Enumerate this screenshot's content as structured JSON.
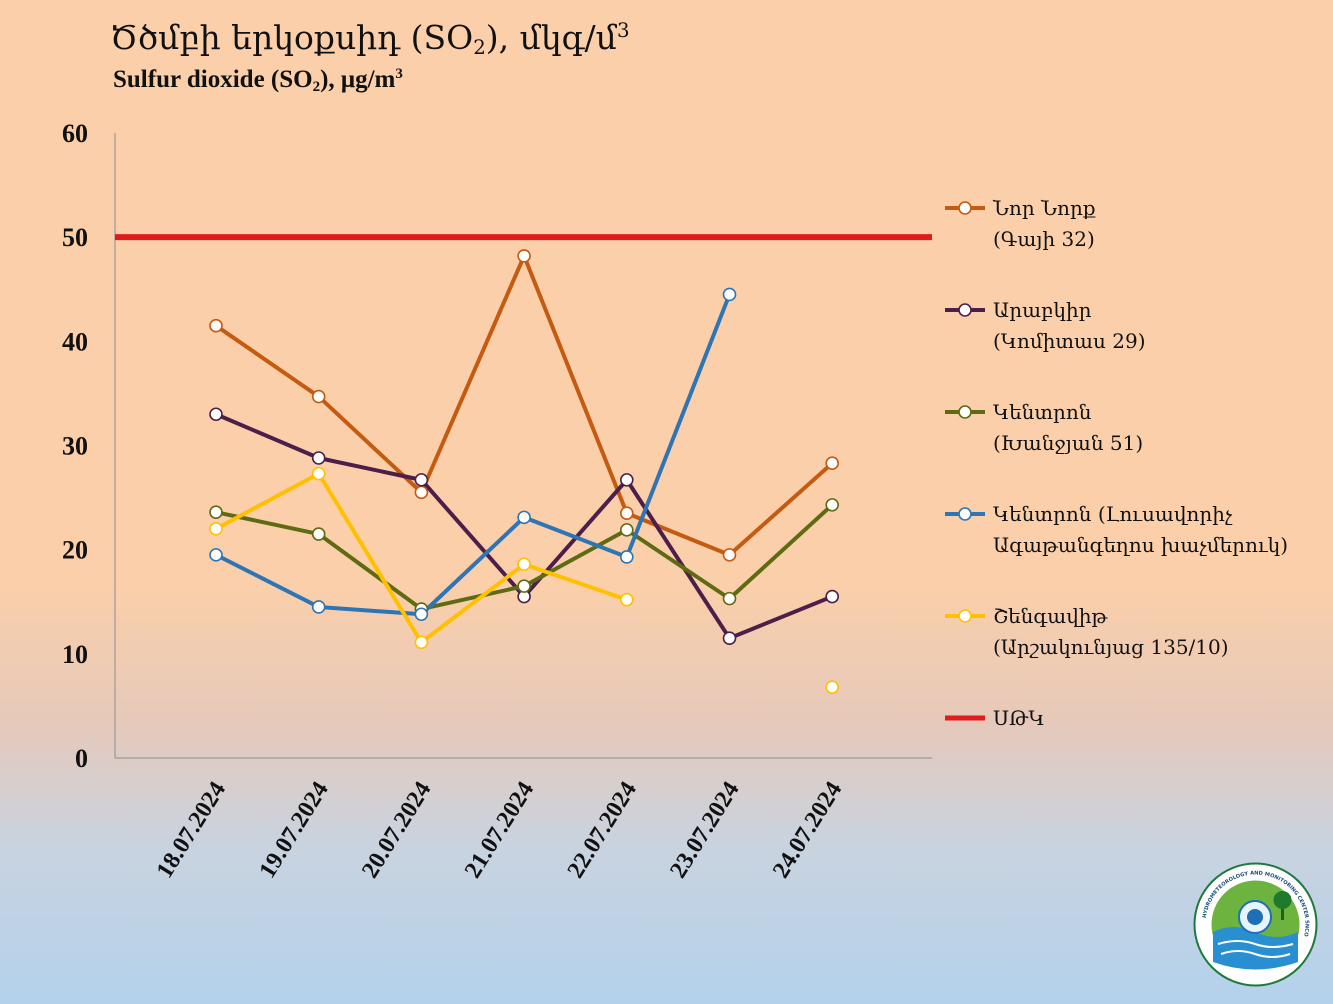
{
  "title": {
    "hy_main": "Ծծմբի երկօքսիդ (SO",
    "hy_sub": "2",
    "hy_end": "), մկգ/մ",
    "hy_sup": "3",
    "en_main": "Sulfur dioxide (SO",
    "en_sub": "2",
    "en_end": "), μg/m",
    "en_sup": "3"
  },
  "logo": {
    "icon": "hydromet-center-seal-icon",
    "ring_text": "HYDROMETEOROLOGY AND MONITORING CENTER SNCO"
  },
  "chart_data": {
    "type": "line",
    "categories": [
      "18.07.2024",
      "19.07.2024",
      "20.07.2024",
      "21.07.2024",
      "22.07.2024",
      "23.07.2024",
      "24.07.2024"
    ],
    "ylim": [
      0,
      60
    ],
    "yticks": [
      0,
      10,
      20,
      30,
      40,
      50,
      60
    ],
    "grid": false,
    "legend_position": "right",
    "series": [
      {
        "name": "Նոր Նորք",
        "name2": "(Գայի 32)",
        "color": "#c55a11",
        "values": [
          41.5,
          34.7,
          25.5,
          48.2,
          23.5,
          19.5,
          28.3
        ]
      },
      {
        "name": "Արաբկիր",
        "name2": "(Կոմիտաս 29)",
        "color": "#4b1f4a",
        "values": [
          33,
          28.8,
          26.7,
          15.5,
          26.7,
          11.5,
          15.5
        ]
      },
      {
        "name": "Կենտրոն",
        "name2": "(Խանջյան 51)",
        "color": "#5e6b12",
        "values": [
          23.6,
          21.5,
          14.3,
          16.5,
          21.9,
          15.3,
          24.3
        ]
      },
      {
        "name": "Կենտրոն (Լուսավորիչ",
        "name2": "Ագաթանգեղոս խաչմերուկ)",
        "color": "#2e75b6",
        "values": [
          19.5,
          14.5,
          13.8,
          23.1,
          19.3,
          44.5,
          null
        ]
      },
      {
        "name": "Շենգավիթ",
        "name2": "(Արշակունյաց 135/10)",
        "color": "#ffc000",
        "values": [
          22,
          27.3,
          11.1,
          18.6,
          15.2,
          null,
          6.8
        ]
      }
    ],
    "threshold": {
      "name": "ՍԹԿ",
      "value": 50,
      "color": "#e01b1b"
    }
  }
}
